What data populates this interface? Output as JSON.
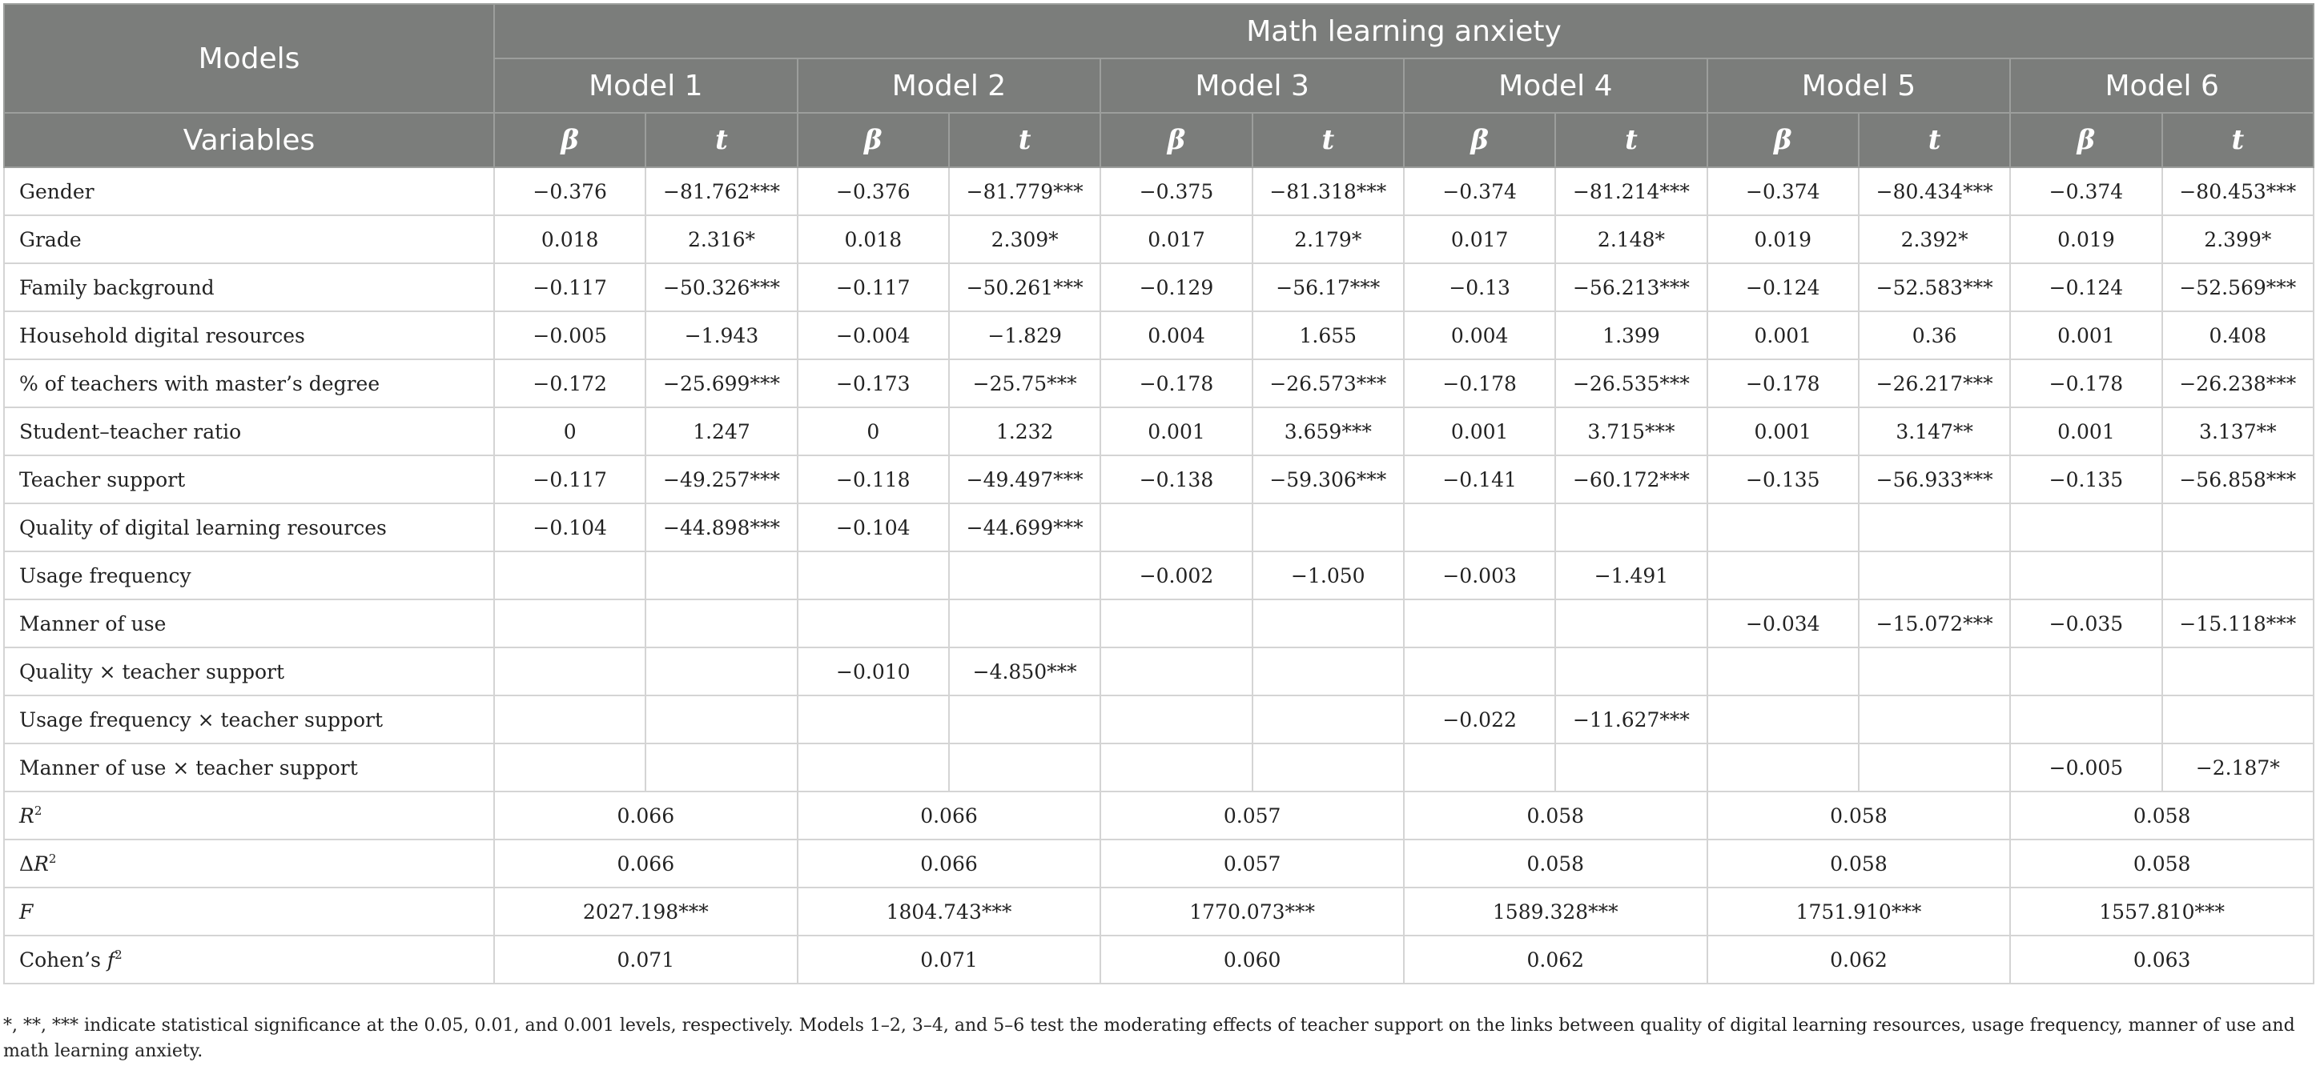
{
  "header": {
    "models_label": "Models",
    "group_title": "Math learning anxiety",
    "variables_label": "Variables",
    "model_names": [
      "Model 1",
      "Model 2",
      "Model 3",
      "Model 4",
      "Model 5",
      "Model 6"
    ],
    "beta_symbol": "β",
    "t_symbol": "t"
  },
  "rows": [
    {
      "label": "Gender",
      "cells": [
        "−0.376",
        "−81.762***",
        "−0.376",
        "−81.779***",
        "−0.375",
        "−81.318***",
        "−0.374",
        "−81.214***",
        "−0.374",
        "−80.434***",
        "−0.374",
        "−80.453***"
      ]
    },
    {
      "label": "Grade",
      "cells": [
        "0.018",
        "2.316*",
        "0.018",
        "2.309*",
        "0.017",
        "2.179*",
        "0.017",
        "2.148*",
        "0.019",
        "2.392*",
        "0.019",
        "2.399*"
      ]
    },
    {
      "label": "Family background",
      "cells": [
        "−0.117",
        "−50.326***",
        "−0.117",
        "−50.261***",
        "−0.129",
        "−56.17***",
        "−0.13",
        "−56.213***",
        "−0.124",
        "−52.583***",
        "−0.124",
        "−52.569***"
      ]
    },
    {
      "label": "Household digital resources",
      "cells": [
        "−0.005",
        "−1.943",
        "−0.004",
        "−1.829",
        "0.004",
        "1.655",
        "0.004",
        "1.399",
        "0.001",
        "0.36",
        "0.001",
        "0.408"
      ]
    },
    {
      "label": "% of teachers with master’s degree",
      "cells": [
        "−0.172",
        "−25.699***",
        "−0.173",
        "−25.75***",
        "−0.178",
        "−26.573***",
        "−0.178",
        "−26.535***",
        "−0.178",
        "−26.217***",
        "−0.178",
        "−26.238***"
      ]
    },
    {
      "label": "Student–teacher ratio",
      "cells": [
        "0",
        "1.247",
        "0",
        "1.232",
        "0.001",
        "3.659***",
        "0.001",
        "3.715***",
        "0.001",
        "3.147**",
        "0.001",
        "3.137**"
      ]
    },
    {
      "label": "Teacher support",
      "cells": [
        "−0.117",
        "−49.257***",
        "−0.118",
        "−49.497***",
        "−0.138",
        "−59.306***",
        "−0.141",
        "−60.172***",
        "−0.135",
        "−56.933***",
        "−0.135",
        "−56.858***"
      ]
    },
    {
      "label": "Quality of digital learning resources",
      "cells": [
        "−0.104",
        "−44.898***",
        "−0.104",
        "−44.699***",
        "",
        "",
        "",
        "",
        "",
        "",
        "",
        ""
      ]
    },
    {
      "label": "Usage frequency",
      "cells": [
        "",
        "",
        "",
        "",
        "−0.002",
        "−1.050",
        "−0.003",
        "−1.491",
        "",
        "",
        "",
        ""
      ]
    },
    {
      "label": "Manner of use",
      "cells": [
        "",
        "",
        "",
        "",
        "",
        "",
        "",
        "",
        "−0.034",
        "−15.072***",
        "−0.035",
        "−15.118***"
      ]
    },
    {
      "label": "Quality × teacher support",
      "cells": [
        "",
        "",
        "−0.010",
        "−4.850***",
        "",
        "",
        "",
        "",
        "",
        "",
        "",
        ""
      ]
    },
    {
      "label": "Usage frequency × teacher support",
      "cells": [
        "",
        "",
        "",
        "",
        "",
        "",
        "−0.022",
        "−11.627***",
        "",
        "",
        "",
        ""
      ]
    },
    {
      "label": "Manner of use × teacher support",
      "cells": [
        "",
        "",
        "",
        "",
        "",
        "",
        "",
        "",
        "",
        "",
        "−0.005",
        "−2.187*"
      ]
    }
  ],
  "stats": [
    {
      "base": "R",
      "sup": "2",
      "prefix": "",
      "italic": true,
      "values": [
        "0.066",
        "0.066",
        "0.057",
        "0.058",
        "0.058",
        "0.058"
      ]
    },
    {
      "base": "R",
      "sup": "2",
      "prefix": "Δ",
      "italic": true,
      "values": [
        "0.066",
        "0.066",
        "0.057",
        "0.058",
        "0.058",
        "0.058"
      ]
    },
    {
      "base": "F",
      "sup": "",
      "prefix": "",
      "italic": true,
      "values": [
        "2027.198***",
        "1804.743***",
        "1770.073***",
        "1589.328***",
        "1751.910***",
        "1557.810***"
      ]
    },
    {
      "base": "Cohen’s ",
      "sup": "2",
      "prefix": "",
      "italic": false,
      "ital_part": "f",
      "values": [
        "0.071",
        "0.071",
        "0.060",
        "0.062",
        "0.062",
        "0.063"
      ]
    }
  ],
  "note": "*, **, *** indicate statistical significance at the 0.05, 0.01, and 0.001 levels, respectively. Models 1–2, 3–4, and 5–6 test the moderating effects of teacher support on the links between quality of digital learning resources, usage frequency, manner of use and math learning anxiety."
}
